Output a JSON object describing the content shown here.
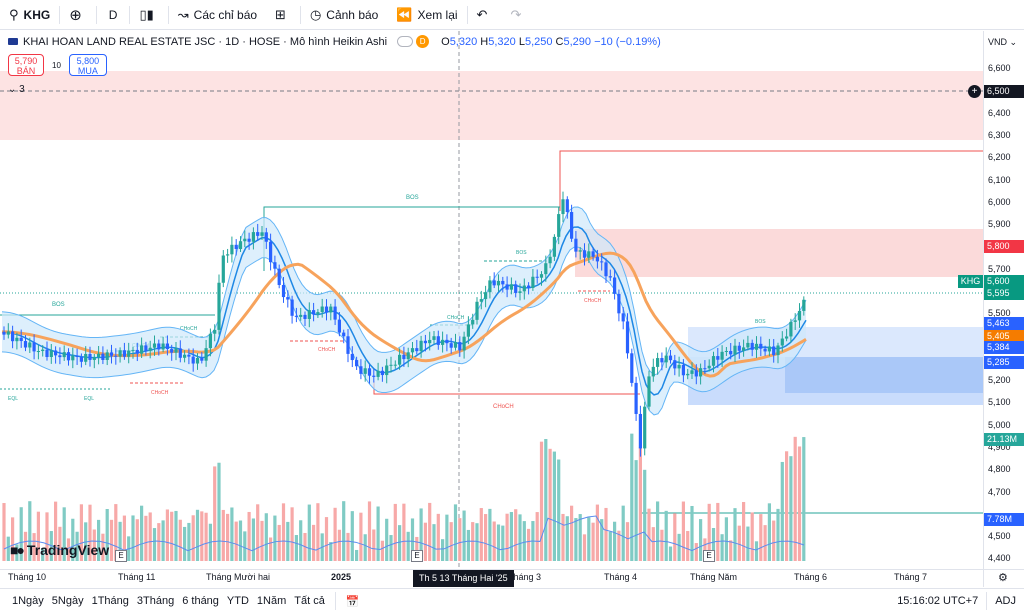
{
  "toolbar": {
    "symbol": "KHG",
    "interval": "D",
    "indicators": "Các chỉ báo",
    "alerts": "Cảnh báo",
    "replay": "Xem lại"
  },
  "legend": {
    "title": "KHAI HOAN LAND REAL ESTATE JSC · 1D · HOSE · Mô hình Heikin Ashi",
    "badge": "D",
    "o_label": "O",
    "o_value": "5,320",
    "h_label": "H",
    "h_value": "5,320",
    "l_label": "L",
    "l_value": "5,250",
    "c_label": "C",
    "c_value": "5,290",
    "change": "−10 (−0.19%)"
  },
  "trade": {
    "sell_price": "5,790",
    "sell_label": "BÁN",
    "spread": "10",
    "buy_price": "5,800",
    "buy_label": "MUA"
  },
  "collapse_count": "3",
  "currency": "VND",
  "price_ticks": [
    "6,600",
    "6,400",
    "6,300",
    "6,200",
    "6,100",
    "6,000",
    "5,900",
    "5,700",
    "5,500",
    "5,200",
    "5,100",
    "5,000",
    "4,900",
    "4,800",
    "4,700",
    "4,500",
    "4,400"
  ],
  "price_labels": {
    "alert": "6,500",
    "p5800": "5,800",
    "symbol_tag": "KHG",
    "last": "5,600",
    "p5595": "5,595",
    "p5463": "5,463",
    "p5405": "5,405",
    "p5384": "5,384",
    "p5285": "5,285",
    "vol1": "21.13M",
    "vol2": "7.78M"
  },
  "chart_labels": {
    "bos": "BOS",
    "choch": "CHoCH",
    "eql": "EQL"
  },
  "colors": {
    "up": "#26a69a",
    "down": "#ef5350",
    "ma_orange": "#f7a35c",
    "band_blue": "#2196f3",
    "supply_zone": "#fbd5d5",
    "demand_zone": "#c7dcfb"
  },
  "time_axis": [
    "Tháng 10",
    "Tháng 11",
    "Tháng Mười hai",
    "2025",
    "Tháng 3",
    "Tháng 4",
    "Tháng Năm",
    "Tháng 6",
    "Tháng 7"
  ],
  "crosshair_date": "Th 5 13 Tháng Hai '25",
  "events": [
    "E",
    "E",
    "E"
  ],
  "logo": "TradingView",
  "bottom": {
    "ranges": [
      "1Ngày",
      "5Ngày",
      "1Tháng",
      "3Tháng",
      "6 tháng",
      "YTD",
      "1Năm",
      "Tất cả"
    ],
    "clock": "15:16:02 UTC+7",
    "adj": "ADJ"
  }
}
